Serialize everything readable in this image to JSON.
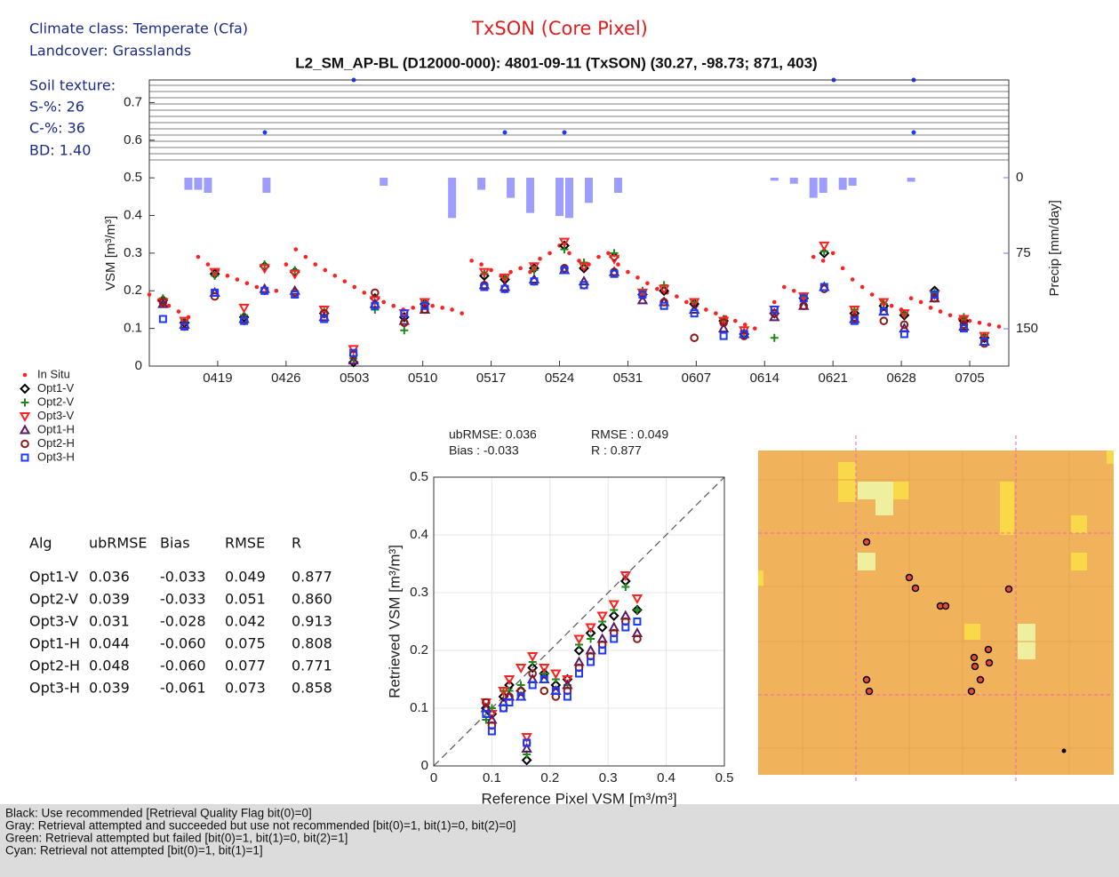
{
  "header": {
    "climate": "Climate class: Temperate (Cfa)",
    "landcover": "Landcover: Grasslands",
    "soil": "Soil texture:",
    "sand": "S-%: 26",
    "clay": "C-%: 36",
    "bd": "BD: 1.40"
  },
  "chart_data": [
    {
      "type": "timeseries",
      "title": "TxSON (Core Pixel)",
      "subtitle": "L2_SM_AP-BL (D12000-000): 4801-09-11 (TxSON) (30.27, -98.73; 871, 403)",
      "ylabel": "VSM [m³/m³]",
      "y2label": "Precip [mm/day]",
      "xlim": [
        102,
        190
      ],
      "xticks": [
        {
          "value": 109,
          "label": "0419"
        },
        {
          "value": 116,
          "label": "0426"
        },
        {
          "value": 123,
          "label": "0503"
        },
        {
          "value": 130,
          "label": "0510"
        },
        {
          "value": 137,
          "label": "0517"
        },
        {
          "value": 144,
          "label": "0524"
        },
        {
          "value": 151,
          "label": "0531"
        },
        {
          "value": 158,
          "label": "0607"
        },
        {
          "value": 165,
          "label": "0614"
        },
        {
          "value": 172,
          "label": "0621"
        },
        {
          "value": 179,
          "label": "0628"
        },
        {
          "value": 186,
          "label": "0705"
        }
      ],
      "ylim": [
        0,
        0.76
      ],
      "yticks": [
        0,
        0.1,
        0.2,
        0.3,
        0.4,
        0.5,
        0.6,
        0.7
      ],
      "y2lim": [
        187,
        -97
      ],
      "y2ticks": [
        0,
        75,
        150
      ],
      "y2color": "#6f6fff",
      "x": [
        103.4,
        105.6,
        108.7,
        111.7,
        113.8,
        116.9,
        119.9,
        122.9,
        125.1,
        128.1,
        130.2,
        136.3,
        138.4,
        141.4,
        144.5,
        146.5,
        149.6,
        152.5,
        154.7,
        157.8,
        160.8,
        162.9,
        166,
        169,
        171.1,
        174.2,
        177.2,
        179.3,
        182.4,
        185.4,
        187.5
      ],
      "series": [
        {
          "name": "In Situ",
          "color": "#ff2020",
          "marker": "dot",
          "x": [
            102,
            103,
            104,
            105,
            106,
            107,
            108,
            109,
            110,
            111,
            112,
            113,
            114,
            115,
            116,
            117,
            118,
            119,
            120,
            121,
            122,
            123,
            124,
            125,
            126,
            127,
            128,
            129,
            130,
            131,
            132,
            133,
            134,
            135,
            136,
            137,
            138,
            139,
            140,
            141,
            142,
            143,
            144,
            145,
            146,
            147,
            148,
            149,
            150,
            151,
            152,
            153,
            154,
            155,
            156,
            157,
            158,
            159,
            160,
            161,
            162,
            163,
            164,
            165,
            166,
            167,
            168,
            169,
            170,
            171,
            172,
            173,
            174,
            175,
            176,
            177,
            178,
            179,
            180,
            181,
            182,
            183,
            184,
            185,
            186,
            187,
            188,
            189
          ],
          "values": [
            0.19,
            0.175,
            0.16,
            0.145,
            0.13,
            0.29,
            0.27,
            0.255,
            0.24,
            0.23,
            0.22,
            0.21,
            0.205,
            0.2,
            0.27,
            0.31,
            0.29,
            0.27,
            0.255,
            0.24,
            0.225,
            0.21,
            0.195,
            0.185,
            0.17,
            0.16,
            0.15,
            0.155,
            0.165,
            0.16,
            0.155,
            0.15,
            0.14,
            0.28,
            0.27,
            0.255,
            0.24,
            0.25,
            0.26,
            0.25,
            0.285,
            0.3,
            0.32,
            0.3,
            0.28,
            0.27,
            0.29,
            0.3,
            0.27,
            0.25,
            0.235,
            0.22,
            0.205,
            0.195,
            0.185,
            0.17,
            0.16,
            0.15,
            0.14,
            0.13,
            0.12,
            0.11,
            0.1,
            null,
            0.17,
            0.21,
            0.2,
            0.19,
            0.29,
            0.28,
            0.3,
            0.26,
            0.23,
            0.21,
            0.19,
            0.175,
            0.16,
            0.15,
            0.18,
            0.17,
            0.155,
            0.145,
            0.135,
            0.125,
            0.12,
            0.115,
            0.11,
            0.105
          ]
        },
        {
          "name": "Opt1-V",
          "color": "#000000",
          "marker": "diamond",
          "values": [
            0.175,
            0.115,
            0.245,
            0.13,
            0.265,
            0.25,
            0.14,
            0.01,
            0.18,
            0.13,
            0.165,
            0.24,
            0.23,
            0.26,
            0.32,
            0.26,
            0.29,
            0.19,
            0.2,
            0.165,
            0.12,
            0.085,
            0.14,
            0.18,
            0.3,
            0.14,
            0.16,
            0.135,
            0.2,
            0.12,
            0.075
          ]
        },
        {
          "name": "Opt2-V",
          "color": "#1a8a1a",
          "marker": "plus",
          "values": [
            0.18,
            0.12,
            0.24,
            0.135,
            0.27,
            0.255,
            0.145,
            0.02,
            0.15,
            0.095,
            0.17,
            0.245,
            0.235,
            0.255,
            0.31,
            0.275,
            0.3,
            0.2,
            0.215,
            0.17,
            0.125,
            0.09,
            0.075,
            0.185,
            0.305,
            0.15,
            0.165,
            0.14,
            0.195,
            0.13,
            0.08
          ]
        },
        {
          "name": "Opt3-V",
          "color": "#ff2020",
          "marker": "triangle-down",
          "values": [
            0.17,
            0.12,
            0.25,
            0.155,
            0.26,
            0.245,
            0.15,
            0.045,
            0.175,
            0.14,
            0.17,
            0.25,
            0.235,
            0.265,
            0.33,
            0.265,
            0.285,
            0.195,
            0.205,
            0.17,
            0.12,
            0.095,
            0.15,
            0.185,
            0.32,
            0.15,
            0.17,
            0.14,
            0.19,
            0.125,
            0.08
          ]
        },
        {
          "name": "Opt1-H",
          "color": "#5a1a6a",
          "marker": "triangle-up",
          "values": [
            0.165,
            0.11,
            0.195,
            0.125,
            0.205,
            0.2,
            0.13,
            0.015,
            0.165,
            0.12,
            0.15,
            0.215,
            0.21,
            0.23,
            0.255,
            0.225,
            0.25,
            0.175,
            0.17,
            0.15,
            0.1,
            0.085,
            0.13,
            0.16,
            0.21,
            0.125,
            0.145,
            0.1,
            0.18,
            0.105,
            0.065
          ]
        },
        {
          "name": "Opt2-H",
          "color": "#8b1a1a",
          "marker": "circle",
          "values": [
            0.17,
            0.105,
            0.185,
            0.12,
            0.2,
            0.195,
            0.14,
            0.03,
            0.195,
            0.115,
            0.15,
            0.215,
            0.205,
            0.225,
            0.26,
            0.215,
            0.25,
            0.19,
            0.17,
            0.075,
            0.115,
            0.08,
            0.14,
            0.16,
            0.205,
            0.13,
            0.12,
            0.11,
            0.18,
            0.11,
            0.06
          ]
        },
        {
          "name": "Opt3-H",
          "color": "#1a3aff",
          "marker": "square",
          "values": [
            0.125,
            0.105,
            0.195,
            0.12,
            0.2,
            0.19,
            0.125,
            0.035,
            0.16,
            0.14,
            0.16,
            0.21,
            0.205,
            0.225,
            0.255,
            0.215,
            0.245,
            0.19,
            0.16,
            0.14,
            0.08,
            0.085,
            0.15,
            0.18,
            0.21,
            0.12,
            0.145,
            0.085,
            0.19,
            0.1,
            0.065
          ]
        }
      ],
      "precip": {
        "color": "#8c8cff",
        "x": [
          106,
          107,
          108,
          114,
          126,
          133,
          136,
          139,
          141,
          144,
          145,
          147,
          150,
          166,
          168,
          170,
          171,
          173,
          174,
          180
        ],
        "values": [
          12,
          12,
          15,
          15,
          8,
          40,
          12,
          20,
          35,
          38,
          40,
          25,
          15,
          3,
          6,
          20,
          15,
          12,
          8,
          4
        ]
      }
    },
    {
      "type": "scatter",
      "xlabel": "Reference Pixel VSM [m³/m³]",
      "ylabel": "Retrieved VSM [m³/m³]",
      "annotations": [
        "ubRMSE: 0.036",
        "RMSE : 0.049",
        "Bias : -0.033",
        "R : 0.877"
      ],
      "xlim": [
        0,
        0.5
      ],
      "ylim": [
        0,
        0.5
      ],
      "xticks": [
        0,
        0.1,
        0.2,
        0.3,
        0.4,
        0.5
      ],
      "yticks": [
        0,
        0.1,
        0.2,
        0.3,
        0.4,
        0.5
      ],
      "grid": true,
      "x": [
        0.09,
        0.1,
        0.12,
        0.13,
        0.15,
        0.16,
        0.17,
        0.19,
        0.21,
        0.23,
        0.25,
        0.27,
        0.29,
        0.31,
        0.33,
        0.35
      ],
      "series": [
        {
          "name": "Opt1-V",
          "color": "#000000",
          "marker": "diamond",
          "values": [
            0.1,
            0.09,
            0.12,
            0.14,
            0.13,
            0.01,
            0.17,
            0.16,
            0.14,
            0.15,
            0.2,
            0.23,
            0.24,
            0.26,
            0.32,
            0.27
          ]
        },
        {
          "name": "Opt2-V",
          "color": "#1a8a1a",
          "marker": "plus",
          "values": [
            0.08,
            0.1,
            0.13,
            0.13,
            0.14,
            0.02,
            0.18,
            0.16,
            0.15,
            0.14,
            0.21,
            0.22,
            0.25,
            0.27,
            0.31,
            0.27
          ]
        },
        {
          "name": "Opt3-V",
          "color": "#ff2020",
          "marker": "triangle-down",
          "values": [
            0.11,
            0.09,
            0.13,
            0.15,
            0.17,
            0.05,
            0.19,
            0.17,
            0.16,
            0.15,
            0.22,
            0.24,
            0.26,
            0.28,
            0.33,
            0.29
          ]
        },
        {
          "name": "Opt1-H",
          "color": "#5a1a6a",
          "marker": "triangle-up",
          "values": [
            0.1,
            0.08,
            0.11,
            0.12,
            0.12,
            0.03,
            0.15,
            0.15,
            0.13,
            0.14,
            0.18,
            0.2,
            0.22,
            0.24,
            0.26,
            0.23
          ]
        },
        {
          "name": "Opt2-H",
          "color": "#8b1a1a",
          "marker": "circle",
          "values": [
            0.11,
            0.07,
            0.1,
            0.12,
            0.13,
            0.04,
            0.16,
            0.13,
            0.12,
            0.13,
            0.17,
            0.19,
            0.21,
            0.23,
            0.25,
            0.22
          ]
        },
        {
          "name": "Opt3-H",
          "color": "#1a3aff",
          "marker": "square",
          "values": [
            0.09,
            0.06,
            0.1,
            0.11,
            0.12,
            0.04,
            0.14,
            0.15,
            0.13,
            0.12,
            0.16,
            0.18,
            0.2,
            0.22,
            0.24,
            0.25
          ]
        }
      ]
    }
  ],
  "table": {
    "header": [
      "Alg",
      "ubRMSE",
      "Bias",
      "RMSE",
      "R"
    ],
    "rows": [
      [
        "Opt1-V",
        "0.036",
        "-0.033",
        "0.049",
        "0.877"
      ],
      [
        "Opt2-V",
        "0.039",
        "-0.033",
        "0.051",
        "0.860"
      ],
      [
        "Opt3-V",
        "0.031",
        "-0.028",
        "0.042",
        "0.913"
      ],
      [
        "Opt1-H",
        "0.044",
        "-0.060",
        "0.075",
        "0.808"
      ],
      [
        "Opt2-H",
        "0.048",
        "-0.060",
        "0.077",
        "0.771"
      ],
      [
        "Opt3-H",
        "0.039",
        "-0.061",
        "0.073",
        "0.858"
      ]
    ]
  },
  "footer": [
    "Black: Use recommended [Retrieval Quality Flag bit(0)=0]",
    "Gray: Retrieval attempted and succeeded but use not recommended [bit(0)=1, bit(1)=0, bit(2)=0]",
    "Green: Retrieval attempted but failed [bit(0)=1, bit(1)=0, bit(2)=1]",
    "Cyan: Retrieval not attempted [bit(0)=1, bit(1)=1]"
  ]
}
